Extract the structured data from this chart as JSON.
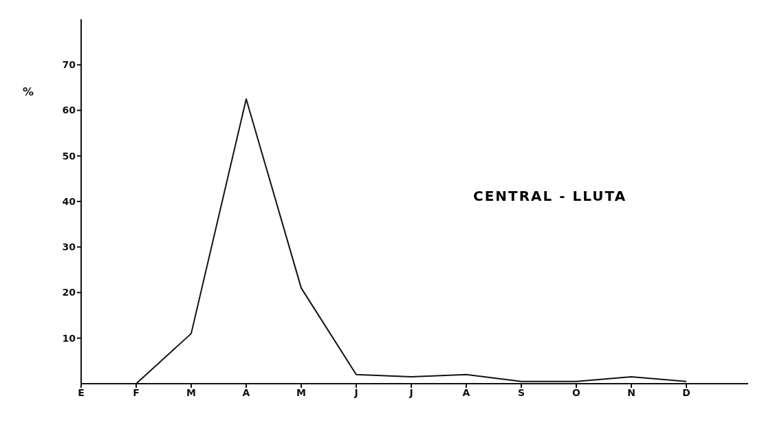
{
  "chart_data": {
    "type": "line",
    "ylabel": "%",
    "annotations": [
      "CENTRAL - LLUTA"
    ],
    "categories": [
      "E",
      "F",
      "M",
      "A",
      "M",
      "J",
      "J",
      "A",
      "S",
      "O",
      "N",
      "D"
    ],
    "series": [
      {
        "color": "#111111",
        "values": [
          0,
          0,
          11,
          62.5,
          21,
          2,
          1.5,
          2,
          0.5,
          0.5,
          1.5,
          0.5
        ]
      }
    ],
    "ylim": [
      0,
      80
    ],
    "yticks": [
      10,
      20,
      30,
      40,
      50,
      60,
      70
    ],
    "grid": false,
    "legend": false,
    "marker": "none",
    "line_style": "solid"
  }
}
